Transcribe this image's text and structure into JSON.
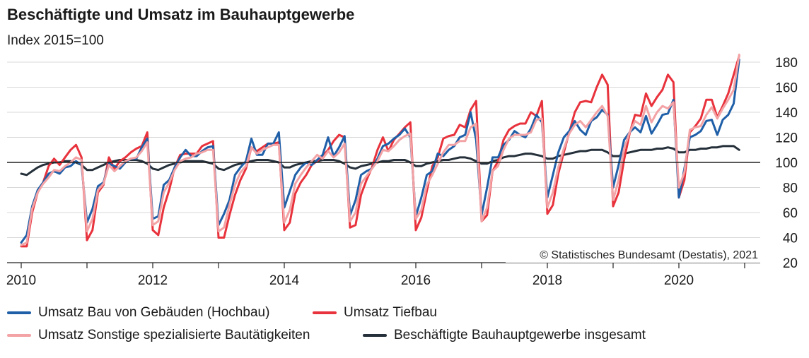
{
  "title": "Beschäftigte und Umsatz im Bauhauptgewerbe",
  "subtitle": "Index 2015=100",
  "source": "© Statistisches Bundesamt (Destatis), 2021",
  "colors": {
    "hochbau": "#1f5fa8",
    "tiefbau": "#e8323c",
    "sonstige": "#f3a3a5",
    "beschaeftigte": "#25303a",
    "grid": "#d8d8d8",
    "baseline": "#222222"
  },
  "chart_data": {
    "type": "line",
    "title": "Beschäftigte und Umsatz im Bauhauptgewerbe",
    "ylabel": "Index 2015=100",
    "xlabel": "",
    "x_start": "2010-01",
    "x_end": "2020-12",
    "frequency": "monthly",
    "ylim": [
      20,
      190
    ],
    "yticks": [
      20,
      40,
      60,
      80,
      100,
      120,
      140,
      160,
      180
    ],
    "xticks": [
      "2010",
      "2012",
      "2014",
      "2016",
      "2018",
      "2020"
    ],
    "reference_line": 100,
    "grid": "horizontal",
    "legend_position": "bottom",
    "series": [
      {
        "name": "Umsatz Bau von Gebäuden (Hochbau)",
        "color_key": "hochbau",
        "values": [
          36,
          42,
          65,
          78,
          84,
          91,
          93,
          91,
          96,
          97,
          101,
          98,
          52,
          63,
          81,
          84,
          99,
          97,
          95,
          100,
          103,
          103,
          112,
          119,
          55,
          57,
          82,
          86,
          96,
          104,
          110,
          105,
          105,
          109,
          112,
          113,
          50,
          59,
          70,
          90,
          96,
          101,
          119,
          106,
          106,
          115,
          115,
          124,
          64,
          77,
          90,
          96,
          100,
          98,
          102,
          106,
          120,
          105,
          112,
          121,
          58,
          70,
          90,
          93,
          95,
          103,
          113,
          115,
          119,
          122,
          127,
          120,
          57,
          72,
          90,
          93,
          107,
          105,
          110,
          113,
          120,
          122,
          140,
          118,
          58,
          80,
          104,
          104,
          114,
          118,
          125,
          122,
          120,
          127,
          138,
          132,
          72,
          90,
          108,
          120,
          125,
          133,
          126,
          122,
          133,
          136,
          142,
          138,
          80,
          98,
          118,
          124,
          128,
          124,
          137,
          123,
          130,
          138,
          139,
          150,
          72,
          95,
          120,
          122,
          125,
          133,
          134,
          122,
          134,
          138,
          147,
          182
        ]
      },
      {
        "name": "Umsatz Tiefbau",
        "color_key": "tiefbau",
        "values": [
          33,
          33,
          60,
          76,
          84,
          97,
          103,
          98,
          104,
          110,
          114,
          104,
          38,
          46,
          76,
          82,
          104,
          95,
          101,
          104,
          108,
          111,
          113,
          124,
          46,
          42,
          64,
          78,
          96,
          106,
          107,
          107,
          107,
          113,
          115,
          117,
          40,
          40,
          58,
          74,
          86,
          95,
          112,
          109,
          112,
          115,
          115,
          116,
          46,
          52,
          75,
          84,
          90,
          98,
          101,
          105,
          110,
          117,
          122,
          120,
          48,
          50,
          74,
          86,
          96,
          110,
          120,
          109,
          118,
          123,
          128,
          132,
          46,
          56,
          77,
          97,
          104,
          119,
          121,
          122,
          130,
          128,
          142,
          149,
          53,
          58,
          93,
          101,
          118,
          126,
          129,
          131,
          131,
          140,
          137,
          149,
          59,
          66,
          91,
          108,
          124,
          140,
          148,
          149,
          148,
          160,
          170,
          162,
          65,
          76,
          102,
          123,
          138,
          137,
          155,
          145,
          152,
          158,
          170,
          164,
          72,
          86,
          124,
          129,
          135,
          150,
          150,
          136,
          145,
          155,
          170,
          185
        ]
      },
      {
        "name": "Umsatz Sonstige spezialisierte Bautätigkeiten",
        "color_key": "sonstige",
        "values": [
          34,
          36,
          63,
          76,
          83,
          88,
          94,
          93,
          97,
          100,
          104,
          102,
          45,
          55,
          78,
          83,
          98,
          93,
          97,
          101,
          103,
          104,
          109,
          116,
          50,
          53,
          76,
          84,
          94,
          101,
          103,
          104,
          107,
          108,
          110,
          110,
          45,
          48,
          66,
          82,
          92,
          97,
          112,
          107,
          110,
          112,
          114,
          114,
          52,
          62,
          83,
          90,
          96,
          101,
          106,
          103,
          109,
          104,
          108,
          115,
          53,
          60,
          83,
          89,
          95,
          101,
          110,
          109,
          113,
          118,
          121,
          123,
          55,
          62,
          82,
          90,
          99,
          108,
          114,
          114,
          117,
          117,
          128,
          131,
          53,
          64,
          93,
          97,
          110,
          119,
          122,
          122,
          122,
          124,
          134,
          135,
          64,
          76,
          96,
          111,
          123,
          130,
          133,
          128,
          134,
          140,
          145,
          137,
          70,
          86,
          111,
          124,
          133,
          130,
          145,
          132,
          140,
          145,
          143,
          148,
          80,
          92,
          126,
          128,
          129,
          138,
          144,
          135,
          143,
          150,
          158,
          186
        ]
      },
      {
        "name": "Beschäftigte Bauhauptgewerbe insgesamt",
        "color_key": "beschaeftigte",
        "values": [
          91,
          90,
          93,
          96,
          98,
          99,
          100,
          100,
          101,
          101,
          100,
          98,
          94,
          94,
          96,
          98,
          100,
          101,
          102,
          102,
          102,
          102,
          101,
          99,
          95,
          94,
          96,
          98,
          99,
          100,
          101,
          101,
          101,
          101,
          100,
          99,
          95,
          94,
          96,
          98,
          99,
          100,
          101,
          102,
          102,
          102,
          101,
          100,
          96,
          96,
          98,
          99,
          100,
          101,
          101,
          102,
          102,
          102,
          101,
          99,
          96,
          95,
          97,
          98,
          99,
          100,
          101,
          101,
          102,
          102,
          102,
          100,
          97,
          97,
          99,
          100,
          101,
          102,
          102,
          103,
          104,
          104,
          103,
          101,
          99,
          99,
          101,
          102,
          104,
          105,
          105,
          106,
          107,
          107,
          106,
          105,
          103,
          103,
          105,
          106,
          107,
          108,
          109,
          109,
          110,
          110,
          110,
          108,
          105,
          105,
          107,
          108,
          109,
          110,
          110,
          110,
          111,
          111,
          112,
          111,
          108,
          108,
          110,
          110,
          111,
          111,
          112,
          112,
          113,
          113,
          113,
          110
        ]
      }
    ]
  }
}
